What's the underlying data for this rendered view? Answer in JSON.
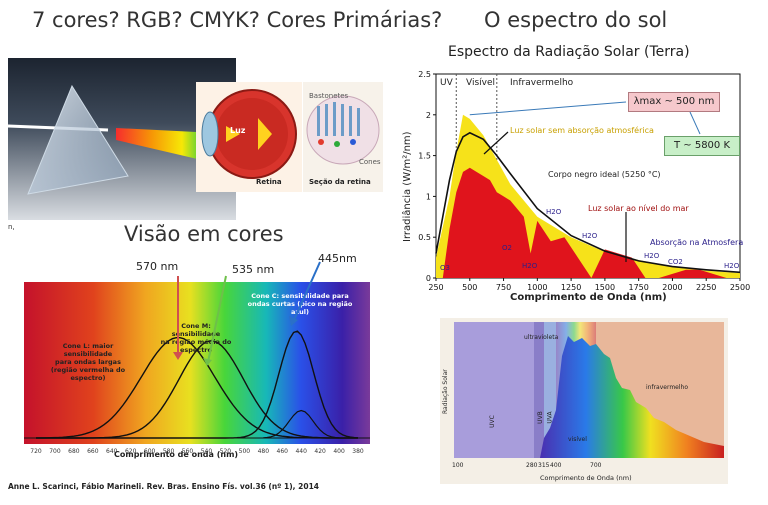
{
  "slide": {
    "title_left": "7 cores? RGB? CMYK? Cores Primárias?",
    "title_right": "O espectro do sol",
    "title_vision": "Visão em cores",
    "citation": "Anne L. Scarinci, Fábio Marineli. Rev. Bras. Ensino Fís. vol.36 (nº 1), 2014",
    "prism_corner_mark": "n,"
  },
  "eye_diagram": {
    "label_light": "Luz",
    "label_retina": "Retina",
    "label_rods": "Bastonetes",
    "label_cones": "Cones",
    "label_retina_section": "Seção da retina"
  },
  "cone_chart": {
    "xlabel": "Comprimento de onda (nm)",
    "x_ticks": [
      "720",
      "700",
      "680",
      "660",
      "640",
      "620",
      "600",
      "580",
      "560",
      "540",
      "520",
      "500",
      "480",
      "460",
      "440",
      "420",
      "400",
      "380"
    ],
    "peak_labels": [
      "570 nm",
      "535 nm",
      "445nm"
    ],
    "annotations": {
      "cone_l": [
        "Cone L: maior sensibilidade",
        "para ondas largas",
        "(região vermelha do espectro)"
      ],
      "cone_m": [
        "Cone M: sensibilidade",
        "na região média do",
        "espectro"
      ],
      "cone_s": [
        "Cone C: sensibilidade para",
        "ondas curtas (pico na região azul)"
      ]
    }
  },
  "solar_chart": {
    "title": "Espectro da Radiação Solar (Terra)",
    "ylabel": "Irradiância (W/m²/nm)",
    "xlabel": "Comprimento de Onda (nm)",
    "x_ticks": [
      "250",
      "500",
      "750",
      "1000",
      "1250",
      "1500",
      "1750",
      "2000",
      "2250",
      "2500"
    ],
    "y_ticks": [
      "0",
      "0.5",
      "1",
      "1.5",
      "2",
      "2.5"
    ],
    "bands": [
      "UV",
      "Visível",
      "Infravermelho"
    ],
    "lambda_max_label": "λmax ~ 500 nm",
    "temperature_label": "T ~ 5800 K",
    "legend_no_absorption": "Luz solar sem absorção atmosférica",
    "legend_blackbody": "Corpo negro ideal (5250 °C)",
    "legend_sea_level": "Luz solar ao nível do mar",
    "absorption_label": "Absorção na Atmosfera",
    "molecules": [
      "O3",
      "O2",
      "H2O",
      "H2O",
      "H2O",
      "H2O",
      "CO2",
      "H2O"
    ]
  },
  "solar_diagram": {
    "ylabel": "Radiação Solar",
    "xlabel": "Comprimento de Onda (nm)",
    "band_labels": [
      "UVC",
      "UVB",
      "UVA",
      "ultravioleta",
      "visível",
      "infravermelho"
    ],
    "x_ticks": [
      "100",
      "280",
      "315",
      "400",
      "700"
    ]
  },
  "chart_data": [
    {
      "type": "line",
      "title": "",
      "xlabel": "Comprimento de onda (nm)",
      "ylabel": "",
      "x_direction": "descending",
      "xlim": [
        720,
        380
      ],
      "series": [
        {
          "name": "Cone L",
          "peak_nm": 570
        },
        {
          "name": "Cone M",
          "peak_nm": 535
        },
        {
          "name": "Cone C",
          "peak_nm": 445
        }
      ]
    },
    {
      "type": "area",
      "title": "Espectro da Radiação Solar (Terra)",
      "xlabel": "Comprimento de Onda (nm)",
      "ylabel": "Irradiância (W/m²/nm)",
      "xlim": [
        250,
        2500
      ],
      "ylim": [
        0,
        2.5
      ],
      "series": [
        {
          "name": "Luz solar sem absorção atmosférica",
          "x": [
            250,
            350,
            400,
            450,
            500,
            550,
            600,
            700,
            800,
            1000,
            1250,
            1500,
            1750,
            2000,
            2250,
            2500
          ],
          "y": [
            0.25,
            1.0,
            1.55,
            2.0,
            1.95,
            1.85,
            1.75,
            1.45,
            1.15,
            0.75,
            0.5,
            0.32,
            0.22,
            0.14,
            0.09,
            0.06
          ]
        },
        {
          "name": "Corpo negro ideal (5250 °C)",
          "x": [
            250,
            350,
            400,
            450,
            500,
            600,
            700,
            800,
            1000,
            1250,
            1500,
            1750,
            2000,
            2250,
            2500
          ],
          "y": [
            0.3,
            1.2,
            1.55,
            1.73,
            1.78,
            1.7,
            1.5,
            1.28,
            0.85,
            0.52,
            0.33,
            0.21,
            0.14,
            0.1,
            0.07
          ]
        },
        {
          "name": "Luz solar ao nível do mar",
          "x": [
            300,
            350,
            400,
            450,
            500,
            550,
            600,
            650,
            700,
            750,
            800,
            900,
            950,
            1000,
            1100,
            1200,
            1300,
            1400,
            1500,
            1600,
            1700,
            1800,
            1900,
            2000,
            2100,
            2200,
            2300,
            2400,
            2500
          ],
          "y": [
            0.0,
            0.6,
            1.05,
            1.3,
            1.35,
            1.3,
            1.25,
            1.2,
            1.05,
            1.0,
            0.95,
            0.75,
            0.3,
            0.7,
            0.45,
            0.5,
            0.25,
            0.0,
            0.35,
            0.3,
            0.25,
            0.0,
            0.0,
            0.05,
            0.1,
            0.1,
            0.05,
            0.0,
            0.0
          ]
        }
      ]
    }
  ]
}
